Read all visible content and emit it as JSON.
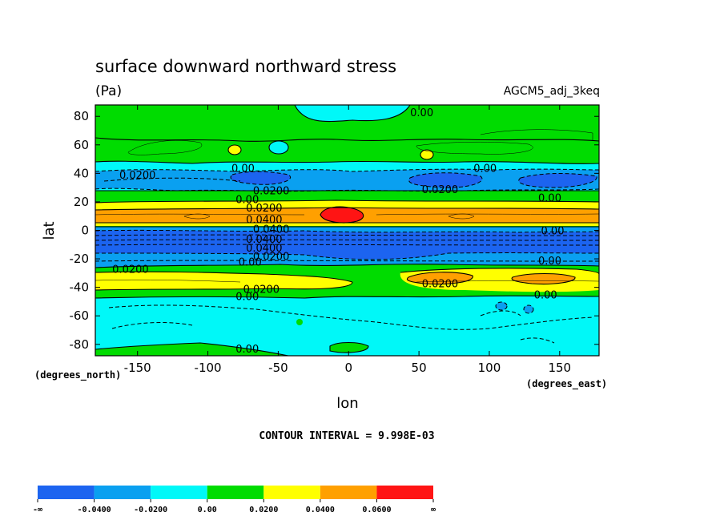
{
  "chart_data": {
    "type": "heatmap",
    "title": "surface downward northward stress",
    "units": "(Pa)",
    "dataset": "AGCM5_adj_3keq",
    "xlabel": "lon",
    "ylabel": "lat",
    "x_units_note": "(degrees_east)",
    "y_units_note": "(degrees_north)",
    "xlim": [
      -180,
      178
    ],
    "ylim": [
      -88,
      88
    ],
    "x_ticks": [
      -150,
      -100,
      -50,
      0,
      50,
      100,
      150
    ],
    "y_ticks": [
      80,
      60,
      40,
      20,
      0,
      -20,
      -40,
      -60,
      -80
    ],
    "contour_interval_text": "CONTOUR INTERVAL = 9.998E-03",
    "colorbar": {
      "labels": [
        "-∞",
        "-0.0400",
        "-0.0200",
        "0.00",
        "0.0200",
        "0.0400",
        "0.0600",
        "∞"
      ],
      "colors": [
        "#1c64f0",
        "#0aa0f0",
        "#00f8f8",
        "#00dc00",
        "#ffff00",
        "#ffa000",
        "#ff1414"
      ]
    },
    "contour_labels": [
      {
        "text": "0.00",
        "lon": 52,
        "lat": 83
      },
      {
        "text": "0.00",
        "lon": -75,
        "lat": 44
      },
      {
        "text": "0.00",
        "lon": 97,
        "lat": 44
      },
      {
        "text": "0.0200",
        "lon": -150,
        "lat": 39
      },
      {
        "text": "0.0200",
        "lon": -55,
        "lat": 28
      },
      {
        "text": "0.0200",
        "lon": 65,
        "lat": 29
      },
      {
        "text": "0.00",
        "lon": 143,
        "lat": 23
      },
      {
        "text": "0.00",
        "lon": -72,
        "lat": 22
      },
      {
        "text": "0.0200",
        "lon": -60,
        "lat": 16
      },
      {
        "text": "0.0400",
        "lon": -60,
        "lat": 8
      },
      {
        "text": "0.0400",
        "lon": -55,
        "lat": 1
      },
      {
        "text": "0.00",
        "lon": 145,
        "lat": 0
      },
      {
        "text": "0.0400",
        "lon": -60,
        "lat": -6
      },
      {
        "text": "0.0400",
        "lon": -60,
        "lat": -12
      },
      {
        "text": "0.0200",
        "lon": -55,
        "lat": -18
      },
      {
        "text": "0.00",
        "lon": -70,
        "lat": -22
      },
      {
        "text": "0.00",
        "lon": 143,
        "lat": -21
      },
      {
        "text": "0.0200",
        "lon": -155,
        "lat": -27
      },
      {
        "text": "0.0200",
        "lon": 65,
        "lat": -37
      },
      {
        "text": "0.0200",
        "lon": -62,
        "lat": -41
      },
      {
        "text": "0.00",
        "lon": 140,
        "lat": -45
      },
      {
        "text": "0.00",
        "lon": -72,
        "lat": -46
      },
      {
        "text": "0.00",
        "lon": -72,
        "lat": -83
      }
    ]
  }
}
